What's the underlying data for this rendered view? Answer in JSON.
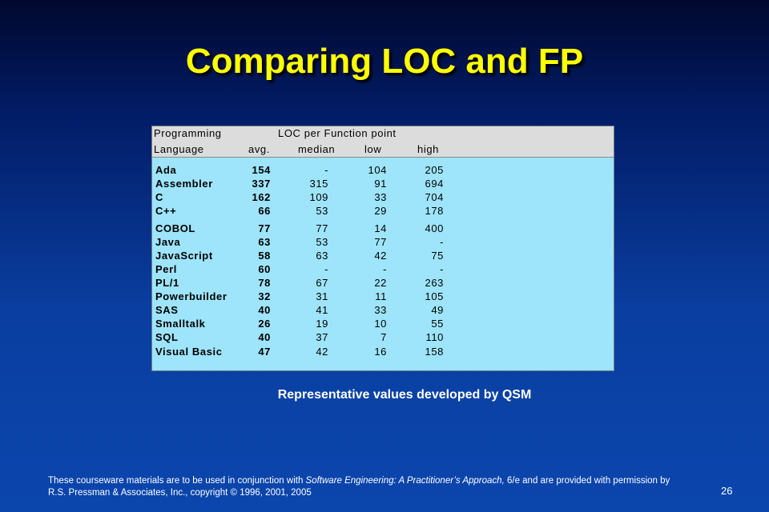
{
  "title": "Comparing LOC and FP",
  "table": {
    "header_row1": {
      "col1": "Programming",
      "span": "LOC per Function point"
    },
    "header_row2": {
      "col1": "Language",
      "avg": "avg.",
      "median": "median",
      "low": "low",
      "high": "high"
    },
    "rows": [
      {
        "language": "Ada",
        "avg": "154",
        "median": "-",
        "low": "104",
        "high": "205"
      },
      {
        "language": "Assembler",
        "avg": "337",
        "median": "315",
        "low": "91",
        "high": "694"
      },
      {
        "language": "C",
        "avg": "162",
        "median": "109",
        "low": "33",
        "high": "704"
      },
      {
        "language": "C++",
        "avg": "66",
        "median": "53",
        "low": "29",
        "high": "178"
      },
      {
        "language": "COBOL",
        "avg": "77",
        "median": "77",
        "low": "14",
        "high": "400"
      },
      {
        "language": "Java",
        "avg": "63",
        "median": "53",
        "low": "77",
        "high": "-"
      },
      {
        "language": "JavaScript",
        "avg": "58",
        "median": "63",
        "low": "42",
        "high": "75"
      },
      {
        "language": "Perl",
        "avg": "60",
        "median": "-",
        "low": "-",
        "high": "-"
      },
      {
        "language": "PL/1",
        "avg": "78",
        "median": "67",
        "low": "22",
        "high": "263"
      },
      {
        "language": "Powerbuilder",
        "avg": "32",
        "median": "31",
        "low": "11",
        "high": "105"
      },
      {
        "language": "SAS",
        "avg": "40",
        "median": "41",
        "low": "33",
        "high": "49"
      },
      {
        "language": "Smalltalk",
        "avg": "26",
        "median": "19",
        "low": "10",
        "high": "55"
      },
      {
        "language": "SQL",
        "avg": "40",
        "median": "37",
        "low": "7",
        "high": "110"
      },
      {
        "language": "Visual Basic",
        "avg": "47",
        "median": "42",
        "low": "16",
        "high": "158"
      }
    ]
  },
  "caption": "Representative values developed by QSM",
  "footer": {
    "part1": "These courseware materials are to be used in conjunction with ",
    "book": "Software Engineering: A Practitioner’s Approach,",
    "part2": " 6/e and are provided with permission by R.S. Pressman & Associates, Inc., copyright © 1996, 2001, 2005"
  },
  "page_number": "26",
  "colors": {
    "title": "#ffff00",
    "table_bg": "#9ee4fa",
    "header_bg": "#dcdcdc"
  }
}
